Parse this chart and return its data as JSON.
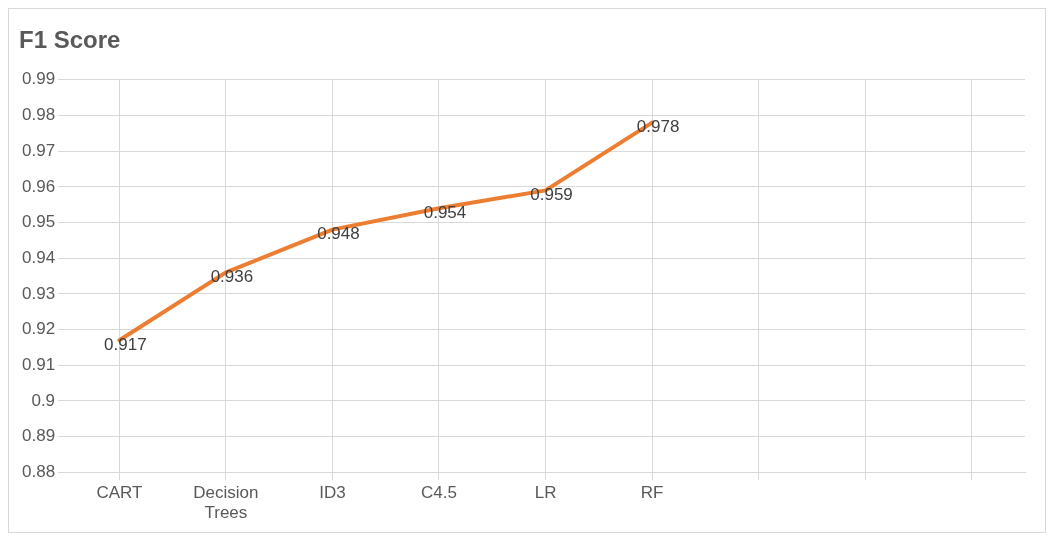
{
  "chart_data": {
    "type": "line",
    "title": "F1 Score",
    "categories": [
      "CART",
      "Decision Trees",
      "ID3",
      "C4.5",
      "LR",
      "RF",
      null,
      null,
      null
    ],
    "series": [
      {
        "color": "#ed7d31",
        "values": [
          0.917,
          0.936,
          0.948,
          0.954,
          0.959,
          0.978,
          null,
          null,
          null
        ]
      }
    ],
    "ylim": [
      0.88,
      0.99
    ],
    "yticks": [
      0.88,
      0.89,
      0.9,
      0.91,
      0.92,
      0.93,
      0.94,
      0.95,
      0.96,
      0.97,
      0.98,
      0.99
    ],
    "grid": true,
    "data_labels": true,
    "marker": "none",
    "line_style": "solid",
    "legend": false
  }
}
